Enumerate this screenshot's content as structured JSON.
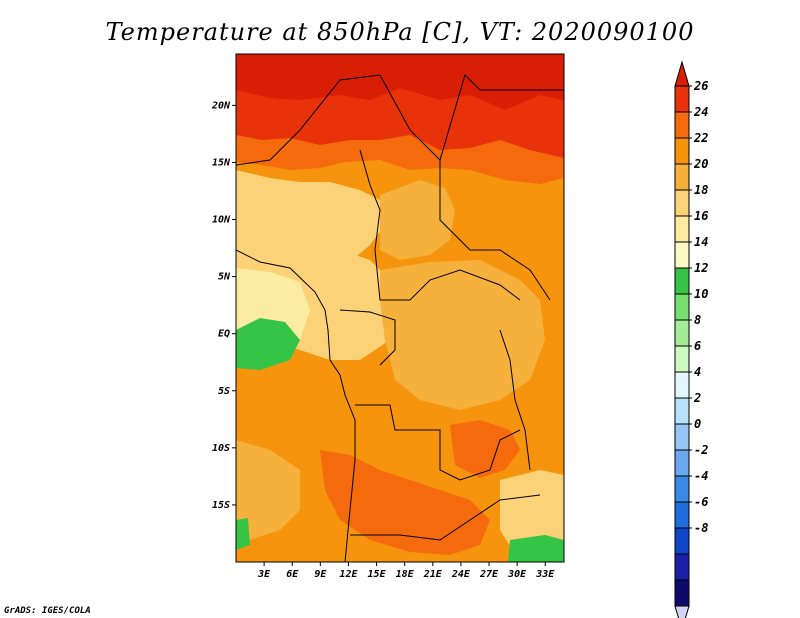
{
  "title": "Temperature at 850hPa [C], VT: 2020090100",
  "credit": "GrADS: IGES/COLA",
  "map": {
    "region": "Central Africa",
    "variable": "Temperature",
    "level": "850hPa",
    "units": "C",
    "valid_time": "2020090100",
    "lon_range": [
      0,
      35
    ],
    "lat_range": [
      -20,
      24.5
    ],
    "lat_ticks": [
      {
        "value": 20,
        "label": "20N"
      },
      {
        "value": 15,
        "label": "15N"
      },
      {
        "value": 10,
        "label": "10N"
      },
      {
        "value": 5,
        "label": "5N"
      },
      {
        "value": 0,
        "label": "EQ"
      },
      {
        "value": -5,
        "label": "5S"
      },
      {
        "value": -10,
        "label": "10S"
      },
      {
        "value": -15,
        "label": "15S"
      }
    ],
    "lon_ticks": [
      {
        "value": 3,
        "label": "3E"
      },
      {
        "value": 6,
        "label": "6E"
      },
      {
        "value": 9,
        "label": "9E"
      },
      {
        "value": 12,
        "label": "12E"
      },
      {
        "value": 15,
        "label": "15E"
      },
      {
        "value": 18,
        "label": "18E"
      },
      {
        "value": 21,
        "label": "21E"
      },
      {
        "value": 24,
        "label": "24E"
      },
      {
        "value": 27,
        "label": "27E"
      },
      {
        "value": 30,
        "label": "30E"
      },
      {
        "value": 33,
        "label": "33E"
      }
    ]
  },
  "colorbar": {
    "labels": [
      "26",
      "24",
      "22",
      "20",
      "18",
      "16",
      "14",
      "12",
      "10",
      "8",
      "6",
      "4",
      "2",
      "0",
      "-2",
      "-4",
      "-6",
      "-8"
    ],
    "colors": [
      "#d81e05",
      "#e83209",
      "#f46a0d",
      "#f6940e",
      "#f6b03c",
      "#fbd278",
      "#fbeca2",
      "#fdf9c4",
      "#35c445",
      "#76df6e",
      "#a2ed96",
      "#cdfac1",
      "#e2f7fb",
      "#b5e1fb",
      "#94c7f7",
      "#6aa9f2",
      "#3a8ae8",
      "#1e6ddf",
      "#0d46c6",
      "#1a1fa3",
      "#0f0b6e",
      "#d6d3f2"
    ]
  }
}
